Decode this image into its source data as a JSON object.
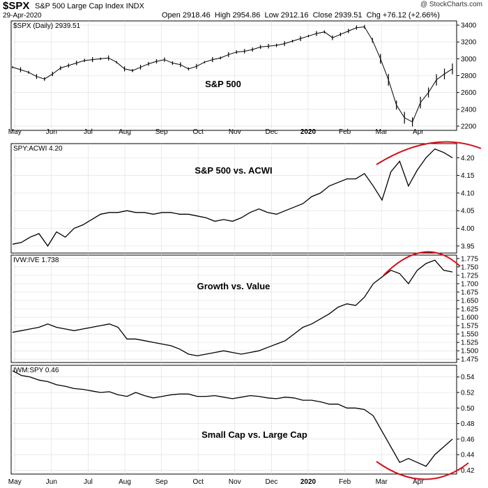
{
  "header": {
    "symbol": "$SPX",
    "name": "S&P 500 Large Cap Index INDX",
    "date": "29-Apr-2020",
    "open_label": "Open",
    "open": "2918.46",
    "high_label": "High",
    "high": "2954.86",
    "low_label": "Low",
    "low": "2912.16",
    "close_label": "Close",
    "close": "2939.51",
    "chg_label": "Chg",
    "chg": "+76.12 (+2.66%)",
    "logo": "@ StockCharts.com"
  },
  "colors": {
    "line": "#000000",
    "annotation": "#d4111a",
    "grid": "#dcdcdc",
    "axis": "#000000"
  },
  "chart_data": [
    {
      "type": "line",
      "style": "ohlc-bars",
      "legend": "$SPX (Daily) 2939.51",
      "annotation": "S&P 500",
      "ylim": [
        2150,
        3450
      ],
      "yticks": [
        "3400",
        "3200",
        "3000",
        "2800",
        "2600",
        "2400",
        "2200"
      ],
      "x": [
        0,
        1,
        2,
        3,
        4,
        5,
        6,
        7,
        8,
        9,
        10,
        11,
        12,
        13,
        14,
        15,
        16,
        17,
        18,
        19,
        20,
        21,
        22,
        23,
        24,
        25,
        26,
        27,
        28,
        29,
        30,
        31,
        32,
        33,
        34,
        35,
        36,
        37,
        38,
        39,
        40,
        41,
        42,
        43,
        44,
        45,
        46,
        47,
        48,
        49,
        50,
        51,
        52,
        53,
        54,
        55
      ],
      "values": [
        2900,
        2870,
        2840,
        2790,
        2760,
        2820,
        2890,
        2920,
        2950,
        2980,
        2990,
        3000,
        3010,
        2960,
        2880,
        2860,
        2900,
        2940,
        2970,
        2990,
        2950,
        2930,
        2880,
        2910,
        2960,
        2990,
        3010,
        3050,
        3080,
        3090,
        3110,
        3140,
        3150,
        3160,
        3180,
        3210,
        3240,
        3270,
        3300,
        3320,
        3250,
        3290,
        3330,
        3370,
        3380,
        3220,
        3000,
        2750,
        2450,
        2300,
        2250,
        2480,
        2600,
        2750,
        2820,
        2880
      ]
    },
    {
      "type": "line",
      "legend": "SPY:ACWI 4.20",
      "annotation": "S&P 500 vs. ACWI",
      "ylim": [
        3.93,
        4.24
      ],
      "yticks": [
        "4.20",
        "4.15",
        "4.10",
        "4.05",
        "4.00",
        "3.95"
      ],
      "values": [
        3.955,
        3.96,
        3.975,
        3.985,
        3.95,
        3.99,
        3.975,
        4.0,
        4.01,
        4.025,
        4.04,
        4.045,
        4.045,
        4.05,
        4.045,
        4.045,
        4.04,
        4.045,
        4.045,
        4.04,
        4.04,
        4.035,
        4.03,
        4.02,
        4.025,
        4.02,
        4.03,
        4.045,
        4.055,
        4.045,
        4.04,
        4.05,
        4.06,
        4.07,
        4.09,
        4.1,
        4.12,
        4.13,
        4.14,
        4.14,
        4.155,
        4.12,
        4.08,
        4.16,
        4.19,
        4.12,
        4.165,
        4.2,
        4.225,
        4.215,
        4.2
      ]
    },
    {
      "type": "line",
      "legend": "IVW:IVE 1.738",
      "annotation": "Growth vs. Value",
      "ylim": [
        1.465,
        1.785
      ],
      "yticks": [
        "1.775",
        "1.750",
        "1.725",
        "1.700",
        "1.675",
        "1.650",
        "1.625",
        "1.600",
        "1.575",
        "1.550",
        "1.525",
        "1.500",
        "1.475"
      ],
      "values": [
        1.555,
        1.56,
        1.565,
        1.57,
        1.58,
        1.57,
        1.565,
        1.56,
        1.565,
        1.57,
        1.575,
        1.58,
        1.57,
        1.535,
        1.535,
        1.53,
        1.525,
        1.52,
        1.515,
        1.505,
        1.49,
        1.485,
        1.49,
        1.495,
        1.5,
        1.495,
        1.49,
        1.495,
        1.5,
        1.51,
        1.52,
        1.53,
        1.55,
        1.57,
        1.58,
        1.595,
        1.61,
        1.63,
        1.64,
        1.635,
        1.66,
        1.7,
        1.72,
        1.74,
        1.73,
        1.7,
        1.74,
        1.76,
        1.77,
        1.74,
        1.735
      ]
    },
    {
      "type": "line",
      "legend": "IWM:SPY 0.46",
      "annotation": "Small Cap vs. Large Cap",
      "ylim": [
        0.415,
        0.555
      ],
      "yticks": [
        "0.54",
        "0.52",
        "0.50",
        "0.48",
        "0.46",
        "0.44",
        "0.42"
      ],
      "values": [
        0.548,
        0.542,
        0.54,
        0.536,
        0.534,
        0.53,
        0.528,
        0.525,
        0.524,
        0.522,
        0.52,
        0.521,
        0.517,
        0.515,
        0.52,
        0.516,
        0.513,
        0.515,
        0.517,
        0.518,
        0.518,
        0.515,
        0.515,
        0.516,
        0.514,
        0.512,
        0.514,
        0.516,
        0.515,
        0.513,
        0.512,
        0.514,
        0.513,
        0.51,
        0.51,
        0.508,
        0.505,
        0.505,
        0.5,
        0.5,
        0.498,
        0.49,
        0.47,
        0.45,
        0.43,
        0.435,
        0.43,
        0.425,
        0.44,
        0.45,
        0.46
      ]
    }
  ],
  "x_axis": {
    "labels": [
      "May",
      "Jun",
      "Jul",
      "Aug",
      "Sep",
      "Oct",
      "Nov",
      "Dec",
      "2020",
      "Feb",
      "Mar",
      "Apr"
    ],
    "positions": [
      0,
      1,
      2,
      3,
      4,
      5,
      6,
      7,
      8,
      9,
      10,
      11
    ]
  }
}
